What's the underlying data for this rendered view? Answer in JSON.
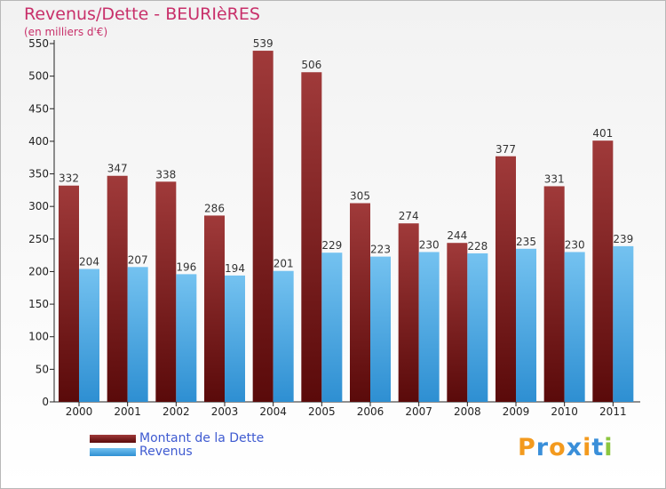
{
  "title": "Revenus/Dette - BEURIèRES",
  "subtitle": "(en milliers d'€)",
  "logo": {
    "text": "Proxiti",
    "letter_colors": [
      "#f39a1e",
      "#3a8fd9",
      "#f39a1e",
      "#3a8fd9",
      "#f39a1e",
      "#3a8fd9",
      "#8cc63f"
    ]
  },
  "chart_data": {
    "type": "bar",
    "categories": [
      "2000",
      "2001",
      "2002",
      "2003",
      "2004",
      "2005",
      "2006",
      "2007",
      "2008",
      "2009",
      "2010",
      "2011"
    ],
    "series": [
      {
        "name": "Montant de la Dette",
        "values": [
          332,
          347,
          338,
          286,
          539,
          506,
          305,
          274,
          244,
          377,
          331,
          401
        ],
        "color_top": "#a03a3a",
        "color_bottom": "#5a0a0a"
      },
      {
        "name": "Revenus",
        "values": [
          204,
          207,
          196,
          194,
          201,
          229,
          223,
          230,
          228,
          235,
          230,
          239
        ],
        "color_top": "#74c2f0",
        "color_bottom": "#2e8fd2"
      }
    ],
    "ylim": [
      0,
      550
    ],
    "yticks": [
      0,
      50,
      100,
      150,
      200,
      250,
      300,
      350,
      400,
      450,
      500,
      550
    ],
    "grid": false,
    "legend_position": "bottom-left"
  }
}
